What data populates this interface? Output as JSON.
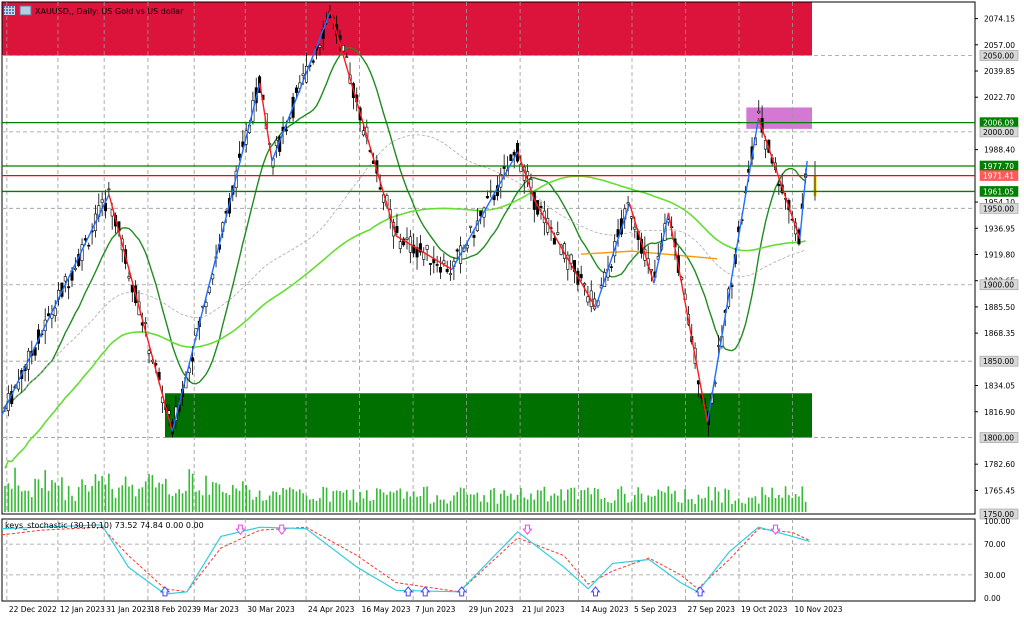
{
  "header": {
    "title": "XAUUSD,, Daily: US Gold vs US dollar",
    "icon": "chart-grid-icon"
  },
  "colors": {
    "background": "#ffffff",
    "bull_candle": "#000000",
    "bear_candle": "#000000",
    "grid": "#9a9a9a",
    "supply_zone": "#dc143c",
    "demand_zone": "#007000",
    "magenta_box": "#d478d4",
    "support_line": "#008000",
    "red_line": "#ff0000",
    "ma_dark": "#1f8c1f",
    "ma_light": "#66dd33",
    "ma_gray": "#aaaaaa",
    "zigzag_up": "#1e6fff",
    "zigzag_down": "#ff1a1a",
    "orange": "#ff9900",
    "volume": "#33bb33",
    "stoch_main": "#33ccdd",
    "stoch_signal": "#ff3333",
    "arrow_up": "#4444ff",
    "arrow_down": "#ee44ee",
    "current_bar": "#f2d000"
  },
  "chart_data": [
    {
      "type": "candlestick",
      "symbol": "XAUUSD",
      "timeframe": "Daily",
      "ylim": [
        1750,
        2085
      ],
      "y_ticks": [
        "2074.15",
        "2057.00",
        "2039.85",
        "2022.70",
        "1988.40",
        "1954.10",
        "1936.95",
        "1919.80",
        "1902.65",
        "1885.50",
        "1868.35",
        "1834.05",
        "1816.90",
        "1782.60",
        "1765.45"
      ],
      "x_ticks": [
        "22 Dec 2022",
        "12 Jan 2023",
        "31 Jan 2023",
        "18 Feb 2023",
        "9 Mar 2023",
        "30 Mar 2023",
        "24 Apr 2023",
        "16 May 2023",
        "7 Jun 2023",
        "29 Jun 2023",
        "21 Jul 2023",
        "14 Aug 2023",
        "5 Sep 2023",
        "27 Sep 2023",
        "19 Oct 2023",
        "10 Nov 2023"
      ],
      "horizontal_levels": [
        {
          "label": "2050.00",
          "value": 2050,
          "color": "#9a9a9a"
        },
        {
          "label": "2006.09",
          "value": 2006.09,
          "color": "#008000"
        },
        {
          "label": "2000.00",
          "value": 2000,
          "color": "#9a9a9a"
        },
        {
          "label": "1977.70",
          "value": 1977.7,
          "color": "#008000"
        },
        {
          "label": "1971.41",
          "value": 1971.41,
          "color": "#ff0000"
        },
        {
          "label": "1961.05",
          "value": 1961.05,
          "color": "#008000"
        },
        {
          "label": "1950.00",
          "value": 1950,
          "color": "#9a9a9a"
        },
        {
          "label": "1900.00",
          "value": 1900,
          "color": "#9a9a9a"
        },
        {
          "label": "1850.00",
          "value": 1850,
          "color": "#9a9a9a"
        },
        {
          "label": "1800.00",
          "value": 1800,
          "color": "#9a9a9a"
        },
        {
          "label": "1750.00",
          "value": 1750,
          "color": "#9a9a9a"
        }
      ],
      "zones": [
        {
          "name": "supply-zone",
          "from": 2050,
          "to": 2085,
          "color": "#dc143c"
        },
        {
          "name": "demand-zone",
          "from": 1800,
          "to": 1829,
          "color": "#007000"
        },
        {
          "name": "magenta-box",
          "from": 2002,
          "to": 2016,
          "color": "#d478d4"
        }
      ],
      "zigzag": [
        {
          "d": "20 Dec 2022",
          "v": 1815
        },
        {
          "d": "2 Feb 2023",
          "v": 1959
        },
        {
          "d": "28 Feb 2023",
          "v": 1804
        },
        {
          "d": "5 Apr 2023",
          "v": 2032
        },
        {
          "d": "10 Apr 2023",
          "v": 1981
        },
        {
          "d": "4 May 2023",
          "v": 2079
        },
        {
          "d": "31 May 2023",
          "v": 1932
        },
        {
          "d": "23 Jun 2023",
          "v": 1910
        },
        {
          "d": "20 Jul 2023",
          "v": 1987
        },
        {
          "d": "27 Jul 2023",
          "v": 1955
        },
        {
          "d": "21 Aug 2023",
          "v": 1885
        },
        {
          "d": "4 Sep 2023",
          "v": 1953
        },
        {
          "d": "14 Sep 2023",
          "v": 1901
        },
        {
          "d": "20 Sep 2023",
          "v": 1947
        },
        {
          "d": "6 Oct 2023",
          "v": 1810
        },
        {
          "d": "27 Oct 2023",
          "v": 2009
        },
        {
          "d": "13 Nov 2023",
          "v": 1930
        },
        {
          "d": "16 Nov 2023",
          "v": 1981
        }
      ],
      "ma_fast_label": "",
      "ma_slow_label": ""
    },
    {
      "type": "line",
      "title": "keys_stochastic (30,10,10) 73.52 74.84 0.00 0.00",
      "ylim": [
        0,
        100
      ],
      "y_ticks": [
        "100.00",
        "70.00",
        "30.00",
        "0.00"
      ],
      "main": [
        {
          "d": "20 Dec 2022",
          "v": 90
        },
        {
          "d": "5 Jan 2023",
          "v": 92
        },
        {
          "d": "30 Jan 2023",
          "v": 95
        },
        {
          "d": "10 Feb 2023",
          "v": 40
        },
        {
          "d": "25 Feb 2023",
          "v": 5
        },
        {
          "d": "6 Mar 2023",
          "v": 8
        },
        {
          "d": "20 Mar 2023",
          "v": 80
        },
        {
          "d": "5 Apr 2023",
          "v": 92
        },
        {
          "d": "24 Apr 2023",
          "v": 90
        },
        {
          "d": "15 May 2023",
          "v": 40
        },
        {
          "d": "31 May 2023",
          "v": 10
        },
        {
          "d": "26 Jun 2023",
          "v": 8
        },
        {
          "d": "20 Jul 2023",
          "v": 86
        },
        {
          "d": "8 Aug 2023",
          "v": 40
        },
        {
          "d": "18 Aug 2023",
          "v": 12
        },
        {
          "d": "28 Aug 2023",
          "v": 45
        },
        {
          "d": "12 Sep 2023",
          "v": 50
        },
        {
          "d": "25 Sep 2023",
          "v": 20
        },
        {
          "d": "2 Oct 2023",
          "v": 8
        },
        {
          "d": "15 Oct 2023",
          "v": 60
        },
        {
          "d": "27 Oct 2023",
          "v": 92
        },
        {
          "d": "10 Nov 2023",
          "v": 80
        },
        {
          "d": "17 Nov 2023",
          "v": 73.52
        }
      ],
      "signal": [
        {
          "d": "20 Dec 2022",
          "v": 82
        },
        {
          "d": "5 Jan 2023",
          "v": 88
        },
        {
          "d": "30 Jan 2023",
          "v": 92
        },
        {
          "d": "10 Feb 2023",
          "v": 55
        },
        {
          "d": "25 Feb 2023",
          "v": 12
        },
        {
          "d": "6 Mar 2023",
          "v": 8
        },
        {
          "d": "20 Mar 2023",
          "v": 65
        },
        {
          "d": "5 Apr 2023",
          "v": 88
        },
        {
          "d": "24 Apr 2023",
          "v": 92
        },
        {
          "d": "15 May 2023",
          "v": 55
        },
        {
          "d": "31 May 2023",
          "v": 20
        },
        {
          "d": "26 Jun 2023",
          "v": 8
        },
        {
          "d": "20 Jul 2023",
          "v": 78
        },
        {
          "d": "8 Aug 2023",
          "v": 55
        },
        {
          "d": "18 Aug 2023",
          "v": 18
        },
        {
          "d": "28 Aug 2023",
          "v": 35
        },
        {
          "d": "12 Sep 2023",
          "v": 52
        },
        {
          "d": "25 Sep 2023",
          "v": 30
        },
        {
          "d": "2 Oct 2023",
          "v": 12
        },
        {
          "d": "15 Oct 2023",
          "v": 50
        },
        {
          "d": "27 Oct 2023",
          "v": 90
        },
        {
          "d": "10 Nov 2023",
          "v": 85
        },
        {
          "d": "17 Nov 2023",
          "v": 74.84
        }
      ],
      "arrows_up": [
        "25 Feb 2023",
        "5 Jun 2023",
        "12 Jun 2023",
        "27 Jun 2023",
        "21 Aug 2023",
        "3 Oct 2023"
      ],
      "arrows_down": [
        "28 Mar 2023",
        "14 Apr 2023",
        "24 Jul 2023",
        "3 Nov 2023"
      ]
    }
  ]
}
